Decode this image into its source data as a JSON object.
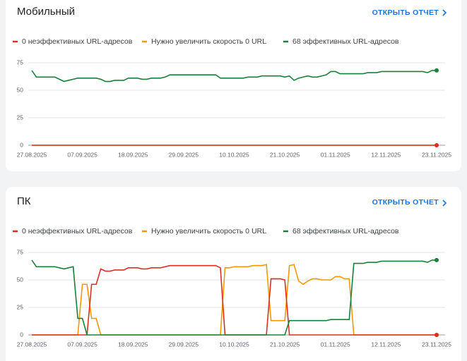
{
  "chart_data": [
    {
      "type": "line",
      "title": "Мобильный",
      "link_text": "ОТКРЫТЬ ОТЧЕТ",
      "categories": [
        "27.08.2025",
        null,
        null,
        null,
        null,
        null,
        null,
        null,
        null,
        null,
        null,
        "07.09.2025",
        null,
        null,
        null,
        null,
        null,
        null,
        null,
        null,
        null,
        null,
        "18.09.2025",
        null,
        null,
        null,
        null,
        null,
        null,
        null,
        null,
        null,
        null,
        "29.09.2025",
        null,
        null,
        null,
        null,
        null,
        null,
        null,
        null,
        null,
        null,
        "10.10.2025",
        null,
        null,
        null,
        null,
        null,
        null,
        null,
        null,
        null,
        null,
        "21.10.2025",
        null,
        null,
        null,
        null,
        null,
        null,
        null,
        null,
        null,
        null,
        "01.11.2025",
        null,
        null,
        null,
        null,
        null,
        null,
        null,
        null,
        null,
        null,
        "12.11.2025",
        null,
        null,
        null,
        null,
        null,
        null,
        null,
        null,
        null,
        null,
        "23.11.2025"
      ],
      "series": [
        {
          "name": "0 неэффективных URL-адресов",
          "color": "#d93025",
          "values": [
            0,
            0,
            0,
            0,
            0,
            0,
            0,
            0,
            0,
            0,
            0,
            0,
            0,
            0,
            0,
            0,
            0,
            0,
            0,
            0,
            0,
            0,
            0,
            0,
            0,
            0,
            0,
            0,
            0,
            0,
            0,
            0,
            0,
            0,
            0,
            0,
            0,
            0,
            0,
            0,
            0,
            0,
            0,
            0,
            0,
            0,
            0,
            0,
            0,
            0,
            0,
            0,
            0,
            0,
            0,
            0,
            0,
            0,
            0,
            0,
            0,
            0,
            0,
            0,
            0,
            0,
            0,
            0,
            0,
            0,
            0,
            0,
            0,
            0,
            0,
            0,
            0,
            0,
            0,
            0,
            0,
            0,
            0,
            0,
            0,
            0,
            0,
            0,
            0
          ]
        },
        {
          "name": "Нужно увеличить скорость 0 URL",
          "color": "#f29900",
          "values": [
            0,
            0,
            0,
            0,
            0,
            0,
            0,
            0,
            0,
            0,
            0,
            0,
            0,
            0,
            0,
            0,
            0,
            0,
            0,
            0,
            0,
            0,
            0,
            0,
            0,
            0,
            0,
            0,
            0,
            0,
            0,
            0,
            0,
            0,
            0,
            0,
            0,
            0,
            0,
            0,
            0,
            0,
            0,
            0,
            0,
            0,
            0,
            0,
            0,
            0,
            0,
            0,
            0,
            0,
            0,
            0,
            0,
            0,
            0,
            0,
            0,
            0,
            0,
            0,
            0,
            0,
            0,
            0,
            0,
            0,
            0,
            0,
            0,
            0,
            0,
            0,
            0,
            0,
            0,
            0,
            0,
            0,
            0,
            0,
            0,
            0,
            0,
            0,
            0
          ]
        },
        {
          "name": "68 эффективных URL-адресов",
          "color": "#188038",
          "values": [
            68,
            62,
            62,
            62,
            62,
            62,
            60,
            58,
            59,
            60,
            61,
            61,
            61,
            61,
            61,
            60,
            58,
            58,
            59,
            59,
            59,
            61,
            61,
            61,
            60,
            60,
            61,
            61,
            61,
            62,
            64,
            64,
            64,
            64,
            64,
            64,
            64,
            64,
            64,
            64,
            64,
            61,
            61,
            61,
            61,
            61,
            61,
            62,
            62,
            62,
            63,
            63,
            63,
            63,
            63,
            62,
            63,
            59,
            61,
            62,
            63,
            62,
            62,
            63,
            64,
            67,
            67,
            65,
            65,
            65,
            65,
            65,
            65,
            66,
            66,
            66,
            67,
            67,
            67,
            67,
            67,
            67,
            67,
            67,
            67,
            67,
            66,
            68,
            68
          ]
        }
      ],
      "ylim": [
        0,
        75
      ],
      "yticks": [
        0,
        25,
        50,
        75
      ],
      "grid": true
    },
    {
      "type": "line",
      "title": "ПК",
      "link_text": "ОТКРЫТЬ ОТЧЕТ",
      "categories": [
        "27.08.2025",
        null,
        null,
        null,
        null,
        null,
        null,
        null,
        null,
        null,
        null,
        "07.09.2025",
        null,
        null,
        null,
        null,
        null,
        null,
        null,
        null,
        null,
        null,
        "18.09.2025",
        null,
        null,
        null,
        null,
        null,
        null,
        null,
        null,
        null,
        null,
        "29.09.2025",
        null,
        null,
        null,
        null,
        null,
        null,
        null,
        null,
        null,
        null,
        "10.10.2025",
        null,
        null,
        null,
        null,
        null,
        null,
        null,
        null,
        null,
        null,
        "21.10.2025",
        null,
        null,
        null,
        null,
        null,
        null,
        null,
        null,
        null,
        null,
        "01.11.2025",
        null,
        null,
        null,
        null,
        null,
        null,
        null,
        null,
        null,
        null,
        "12.11.2025",
        null,
        null,
        null,
        null,
        null,
        null,
        null,
        null,
        null,
        null,
        "23.11.2025"
      ],
      "series": [
        {
          "name": "0 неэффективных URL-адресов",
          "color": "#d93025",
          "values": [
            0,
            0,
            0,
            0,
            0,
            0,
            0,
            0,
            0,
            0,
            0,
            0,
            0,
            46,
            46,
            60,
            58,
            58,
            59,
            59,
            59,
            61,
            61,
            61,
            60,
            60,
            61,
            61,
            61,
            62,
            63,
            63,
            63,
            63,
            63,
            63,
            63,
            63,
            63,
            63,
            63,
            61,
            0,
            0,
            0,
            0,
            0,
            0,
            0,
            0,
            0,
            0,
            51,
            51,
            51,
            50,
            0,
            0,
            0,
            0,
            0,
            0,
            0,
            0,
            0,
            0,
            0,
            0,
            0,
            0,
            0,
            0,
            0,
            0,
            0,
            0,
            0,
            0,
            0,
            0,
            0,
            0,
            0,
            0,
            0,
            0,
            0,
            0,
            0
          ]
        },
        {
          "name": "Нужно увеличить скорость 0 URL",
          "color": "#f29900",
          "values": [
            0,
            0,
            0,
            0,
            0,
            0,
            0,
            0,
            0,
            0,
            0,
            46,
            46,
            15,
            15,
            0,
            0,
            0,
            0,
            0,
            0,
            0,
            0,
            0,
            0,
            0,
            0,
            0,
            0,
            0,
            0,
            0,
            0,
            0,
            0,
            0,
            0,
            0,
            0,
            0,
            0,
            0,
            61,
            61,
            62,
            62,
            62,
            62,
            63,
            63,
            63,
            64,
            13,
            13,
            13,
            13,
            63,
            64,
            49,
            46,
            49,
            51,
            51,
            50,
            50,
            50,
            53,
            53,
            51,
            51,
            0,
            0,
            0,
            0,
            0,
            0,
            0,
            0,
            0,
            0,
            0,
            0,
            0,
            0,
            0,
            0,
            0,
            0,
            0
          ]
        },
        {
          "name": "68 эффективных URL-адресов",
          "color": "#188038",
          "values": [
            68,
            62,
            62,
            62,
            62,
            62,
            61,
            60,
            61,
            62,
            15,
            15,
            0,
            0,
            0,
            0,
            0,
            0,
            0,
            0,
            0,
            0,
            0,
            0,
            0,
            0,
            0,
            0,
            0,
            0,
            0,
            0,
            0,
            0,
            0,
            0,
            0,
            0,
            0,
            0,
            0,
            0,
            0,
            0,
            0,
            0,
            0,
            0,
            0,
            0,
            0,
            0,
            0,
            0,
            0,
            0,
            13,
            13,
            13,
            13,
            13,
            13,
            13,
            13,
            13,
            14,
            14,
            14,
            14,
            14,
            65,
            65,
            65,
            66,
            66,
            66,
            67,
            67,
            67,
            67,
            67,
            67,
            67,
            67,
            67,
            67,
            66,
            68,
            68
          ]
        }
      ],
      "ylim": [
        0,
        75
      ],
      "yticks": [
        0,
        25,
        50,
        75
      ],
      "grid": true
    }
  ]
}
